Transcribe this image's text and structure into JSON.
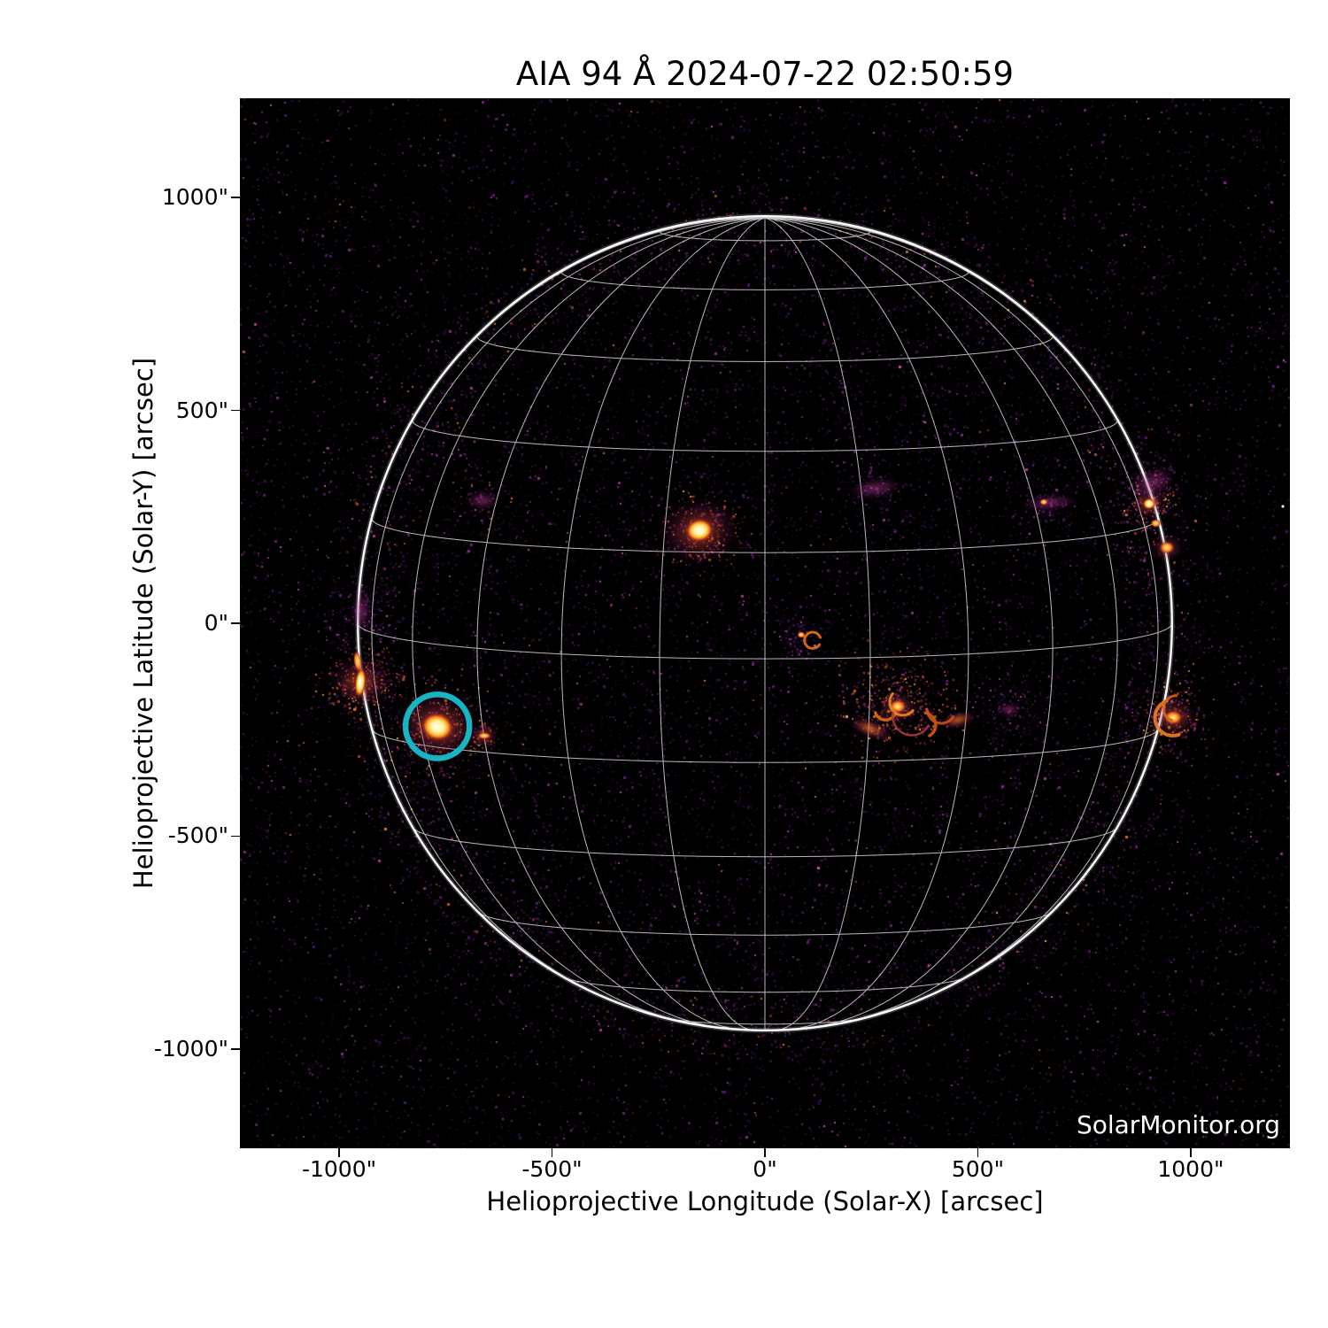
{
  "title": "AIA 94 Å 2024-07-22 02:50:59",
  "watermark": "SolarMonitor.org",
  "axes": {
    "x": {
      "label": "Helioprojective Longitude (Solar-X) [arcsec]",
      "tick_labels": [
        "-1000\"",
        "-500\"",
        "0\"",
        "500\"",
        "1000\""
      ],
      "tick_values": [
        -1000,
        -500,
        0,
        500,
        1000
      ],
      "range": [
        -1233,
        1233
      ]
    },
    "y": {
      "label": "Helioprojective Latitude (Solar-Y) [arcsec]",
      "tick_labels": [
        "1000\"",
        "500\"",
        "0\"",
        "-500\"",
        "-1000\""
      ],
      "tick_values": [
        1000,
        500,
        0,
        -500,
        -1000
      ],
      "range": [
        -1233,
        1233
      ]
    }
  },
  "colors": {
    "page_background": "#ffffff",
    "plot_background": "#000000",
    "grid_line": "rgba(255,255,255,0.72)",
    "limb_line": "#ffffff",
    "annotation_circle": "#17b4c4",
    "watermark_text": "#ffffff",
    "axis_text": "#000000"
  },
  "chart_data": {
    "type": "heatmap",
    "title": "AIA 94 Å 2024-07-22 02:50:59",
    "instrument": "AIA",
    "wavelength": "94 Å",
    "timestamp": "2024-07-22 02:50:59",
    "xlabel": "Helioprojective Longitude (Solar-X) [arcsec]",
    "ylabel": "Helioprojective Latitude (Solar-Y) [arcsec]",
    "xlim": [
      -1233,
      1233
    ],
    "ylim": [
      -1233,
      1233
    ],
    "grid": "heliographic lon/lat every 15 deg",
    "solar_disk": {
      "center_arcsec": [
        0,
        0
      ],
      "radius_arcsec": 956,
      "grid_spacing_deg": 15,
      "b0_deg": 5
    },
    "annotation": {
      "shape": "circle",
      "label": "flagged-flare-region",
      "center_arcsec": [
        -769,
        -242
      ],
      "radius_arcsec": 75,
      "color": "#17b4c4",
      "stroke_px": 6.5
    },
    "features": [
      {
        "name": "ar-disk-center-north",
        "type": "blob",
        "x": -154,
        "y": 218,
        "w": 75,
        "h": 62,
        "rot": -10,
        "look": "saturated-warm",
        "halo": 200,
        "noise": {
          "n": 220,
          "r": 95,
          "palette": "warm"
        }
      },
      {
        "name": "ar-flare-site-circled",
        "type": "blob",
        "x": -769,
        "y": -242,
        "w": 87,
        "h": 74,
        "rot": 15,
        "look": "saturated-warm",
        "halo": 210,
        "noise": {
          "n": 300,
          "r": 115,
          "palette": "warm"
        }
      },
      {
        "name": "ar-flare-companion",
        "type": "blob",
        "x": -659,
        "y": -264,
        "w": 33,
        "h": 18,
        "rot": 0,
        "look": "bright-warm",
        "halo": 70,
        "noise": {
          "n": 60,
          "r": 40,
          "palette": "warm"
        }
      },
      {
        "name": "east-limb-brightening",
        "type": "blob",
        "x": -950,
        "y": -139,
        "w": 29,
        "h": 79,
        "rot": 6,
        "look": "saturated-warm",
        "halo": 150,
        "noise": {
          "n": 260,
          "r": 100,
          "palette": "warm"
        }
      },
      {
        "name": "east-limb-streak",
        "type": "blob",
        "x": -956,
        "y": -89,
        "w": 21,
        "h": 54,
        "rot": -8,
        "look": "bright-warm",
        "halo": 0
      },
      {
        "name": "west-ar-core",
        "type": "blob",
        "x": 312,
        "y": -196,
        "w": 42,
        "h": 33,
        "rot": 0,
        "look": "bright-warm",
        "halo": 100,
        "noise": {
          "n": 420,
          "r": 135,
          "palette": "warm"
        }
      },
      {
        "name": "west-ar-wisp-left",
        "type": "blob",
        "x": 247,
        "y": -248,
        "w": 104,
        "h": 42,
        "rot": 20,
        "look": "faint-warm",
        "halo": 0
      },
      {
        "name": "west-ar-wisp-right",
        "type": "blob",
        "x": 453,
        "y": -227,
        "w": 83,
        "h": 37,
        "rot": -15,
        "look": "faint-warm",
        "halo": 0
      },
      {
        "name": "nw-limb-spot-a",
        "type": "blob",
        "x": 902,
        "y": 281,
        "w": 33,
        "h": 29,
        "rot": 0,
        "look": "saturated-warm",
        "halo": 90,
        "noise": {
          "n": 150,
          "r": 75,
          "palette": "warm"
        }
      },
      {
        "name": "nw-limb-spot-b",
        "type": "blob",
        "x": 919,
        "y": 235,
        "w": 27,
        "h": 22,
        "rot": 0,
        "look": "bright-warm",
        "halo": 0
      },
      {
        "name": "nw-limb-spot-c",
        "type": "blob",
        "x": 944,
        "y": 177,
        "w": 37,
        "h": 31,
        "rot": 0,
        "look": "bright-warm",
        "halo": 80
      },
      {
        "name": "nw-limb-diffuse",
        "type": "blob",
        "x": 908,
        "y": 330,
        "w": 125,
        "h": 73,
        "rot": -20,
        "look": "faint-magenta",
        "halo": 0,
        "noise": {
          "n": 120,
          "r": 75,
          "palette": "cool"
        }
      },
      {
        "name": "sw-limb-loops-blob",
        "type": "blob",
        "x": 958,
        "y": -222,
        "w": 46,
        "h": 35,
        "rot": 0,
        "look": "bright-warm",
        "halo": 120,
        "noise": {
          "n": 200,
          "r": 85,
          "palette": "warm"
        }
      },
      {
        "name": "quiet-ring-blob",
        "type": "blob",
        "x": 85,
        "y": -27,
        "w": 21,
        "h": 17,
        "rot": 0,
        "look": "bright-warm",
        "halo": 0,
        "noise": {
          "n": 140,
          "r": 60,
          "palette": "cool"
        }
      },
      {
        "name": "filament-channel-a",
        "type": "blob",
        "x": 258,
        "y": 318,
        "w": 135,
        "h": 52,
        "rot": -8,
        "look": "faint-magenta",
        "halo": 0,
        "noise": {
          "n": 90,
          "r": 60,
          "palette": "cool"
        }
      },
      {
        "name": "filament-channel-b",
        "type": "blob",
        "x": 667,
        "y": 283,
        "w": 146,
        "h": 46,
        "rot": -5,
        "look": "faint-magenta",
        "halo": 0,
        "noise": {
          "n": 110,
          "r": 60,
          "palette": "cool"
        }
      },
      {
        "name": "filament-channel-b-spark",
        "type": "blob",
        "x": 655,
        "y": 285,
        "w": 19,
        "h": 15,
        "rot": 0,
        "look": "bright-warm",
        "halo": 0
      },
      {
        "name": "ne-quiet-specks",
        "type": "blob",
        "x": -663,
        "y": 287,
        "w": 83,
        "h": 52,
        "rot": 0,
        "look": "faint-magenta",
        "halo": 0,
        "noise": {
          "n": 80,
          "r": 75,
          "palette": "mix"
        }
      },
      {
        "name": "east-limb-diffuse",
        "type": "blob",
        "x": -948,
        "y": 27,
        "w": 54,
        "h": 114,
        "rot": 0,
        "look": "faint-magenta",
        "halo": 0,
        "noise": {
          "n": 140,
          "r": 95,
          "palette": "cool"
        }
      },
      {
        "name": "west-quiet-specks",
        "type": "blob",
        "x": 574,
        "y": -202,
        "w": 60,
        "h": 40,
        "rot": 0,
        "look": "faint-magenta",
        "halo": 0,
        "noise": {
          "n": 150,
          "r": 90,
          "palette": "cool"
        }
      },
      {
        "name": "bright-point-nw",
        "type": "dot",
        "x": 1216,
        "y": 274,
        "w": 8,
        "h": 8
      },
      {
        "name": "west-ar-loop-1",
        "type": "arc",
        "x": 283,
        "y": -202,
        "r": 25,
        "a0": 200,
        "a1": 340,
        "color": "#e06a14",
        "sw": 3.5
      },
      {
        "name": "west-ar-loop-2",
        "type": "arc",
        "x": 324,
        "y": -185,
        "r": 31,
        "a0": 140,
        "a1": 320,
        "color": "#f08a20",
        "sw": 3
      },
      {
        "name": "west-ar-loop-3",
        "type": "arc",
        "x": 372,
        "y": -239,
        "r": 29,
        "a0": -60,
        "a1": 80,
        "color": "#d85a10",
        "sw": 3.5
      },
      {
        "name": "west-ar-loop-4",
        "type": "arc",
        "x": 414,
        "y": -202,
        "r": 33,
        "a0": 180,
        "a1": 330,
        "color": "#c8531c",
        "sw": 3
      },
      {
        "name": "west-ar-loop-5",
        "type": "arc",
        "x": 345,
        "y": -218,
        "r": 45,
        "a0": 170,
        "a1": 330,
        "color": "#a63a40",
        "sw": 2.5
      },
      {
        "name": "quiet-ring",
        "type": "arc",
        "x": 112,
        "y": -40,
        "r": 19,
        "a0": 20,
        "a1": 330,
        "color": "#e8721a",
        "sw": 3
      },
      {
        "name": "sw-limb-loop-1",
        "type": "arc",
        "x": 958,
        "y": -222,
        "r": 42,
        "a0": 110,
        "a1": 290,
        "color": "#f08020",
        "sw": 4
      },
      {
        "name": "sw-limb-loop-2",
        "type": "arc",
        "x": 966,
        "y": -200,
        "r": 30,
        "a0": 90,
        "a1": 250,
        "color": "#d86018",
        "sw": 3
      }
    ]
  }
}
